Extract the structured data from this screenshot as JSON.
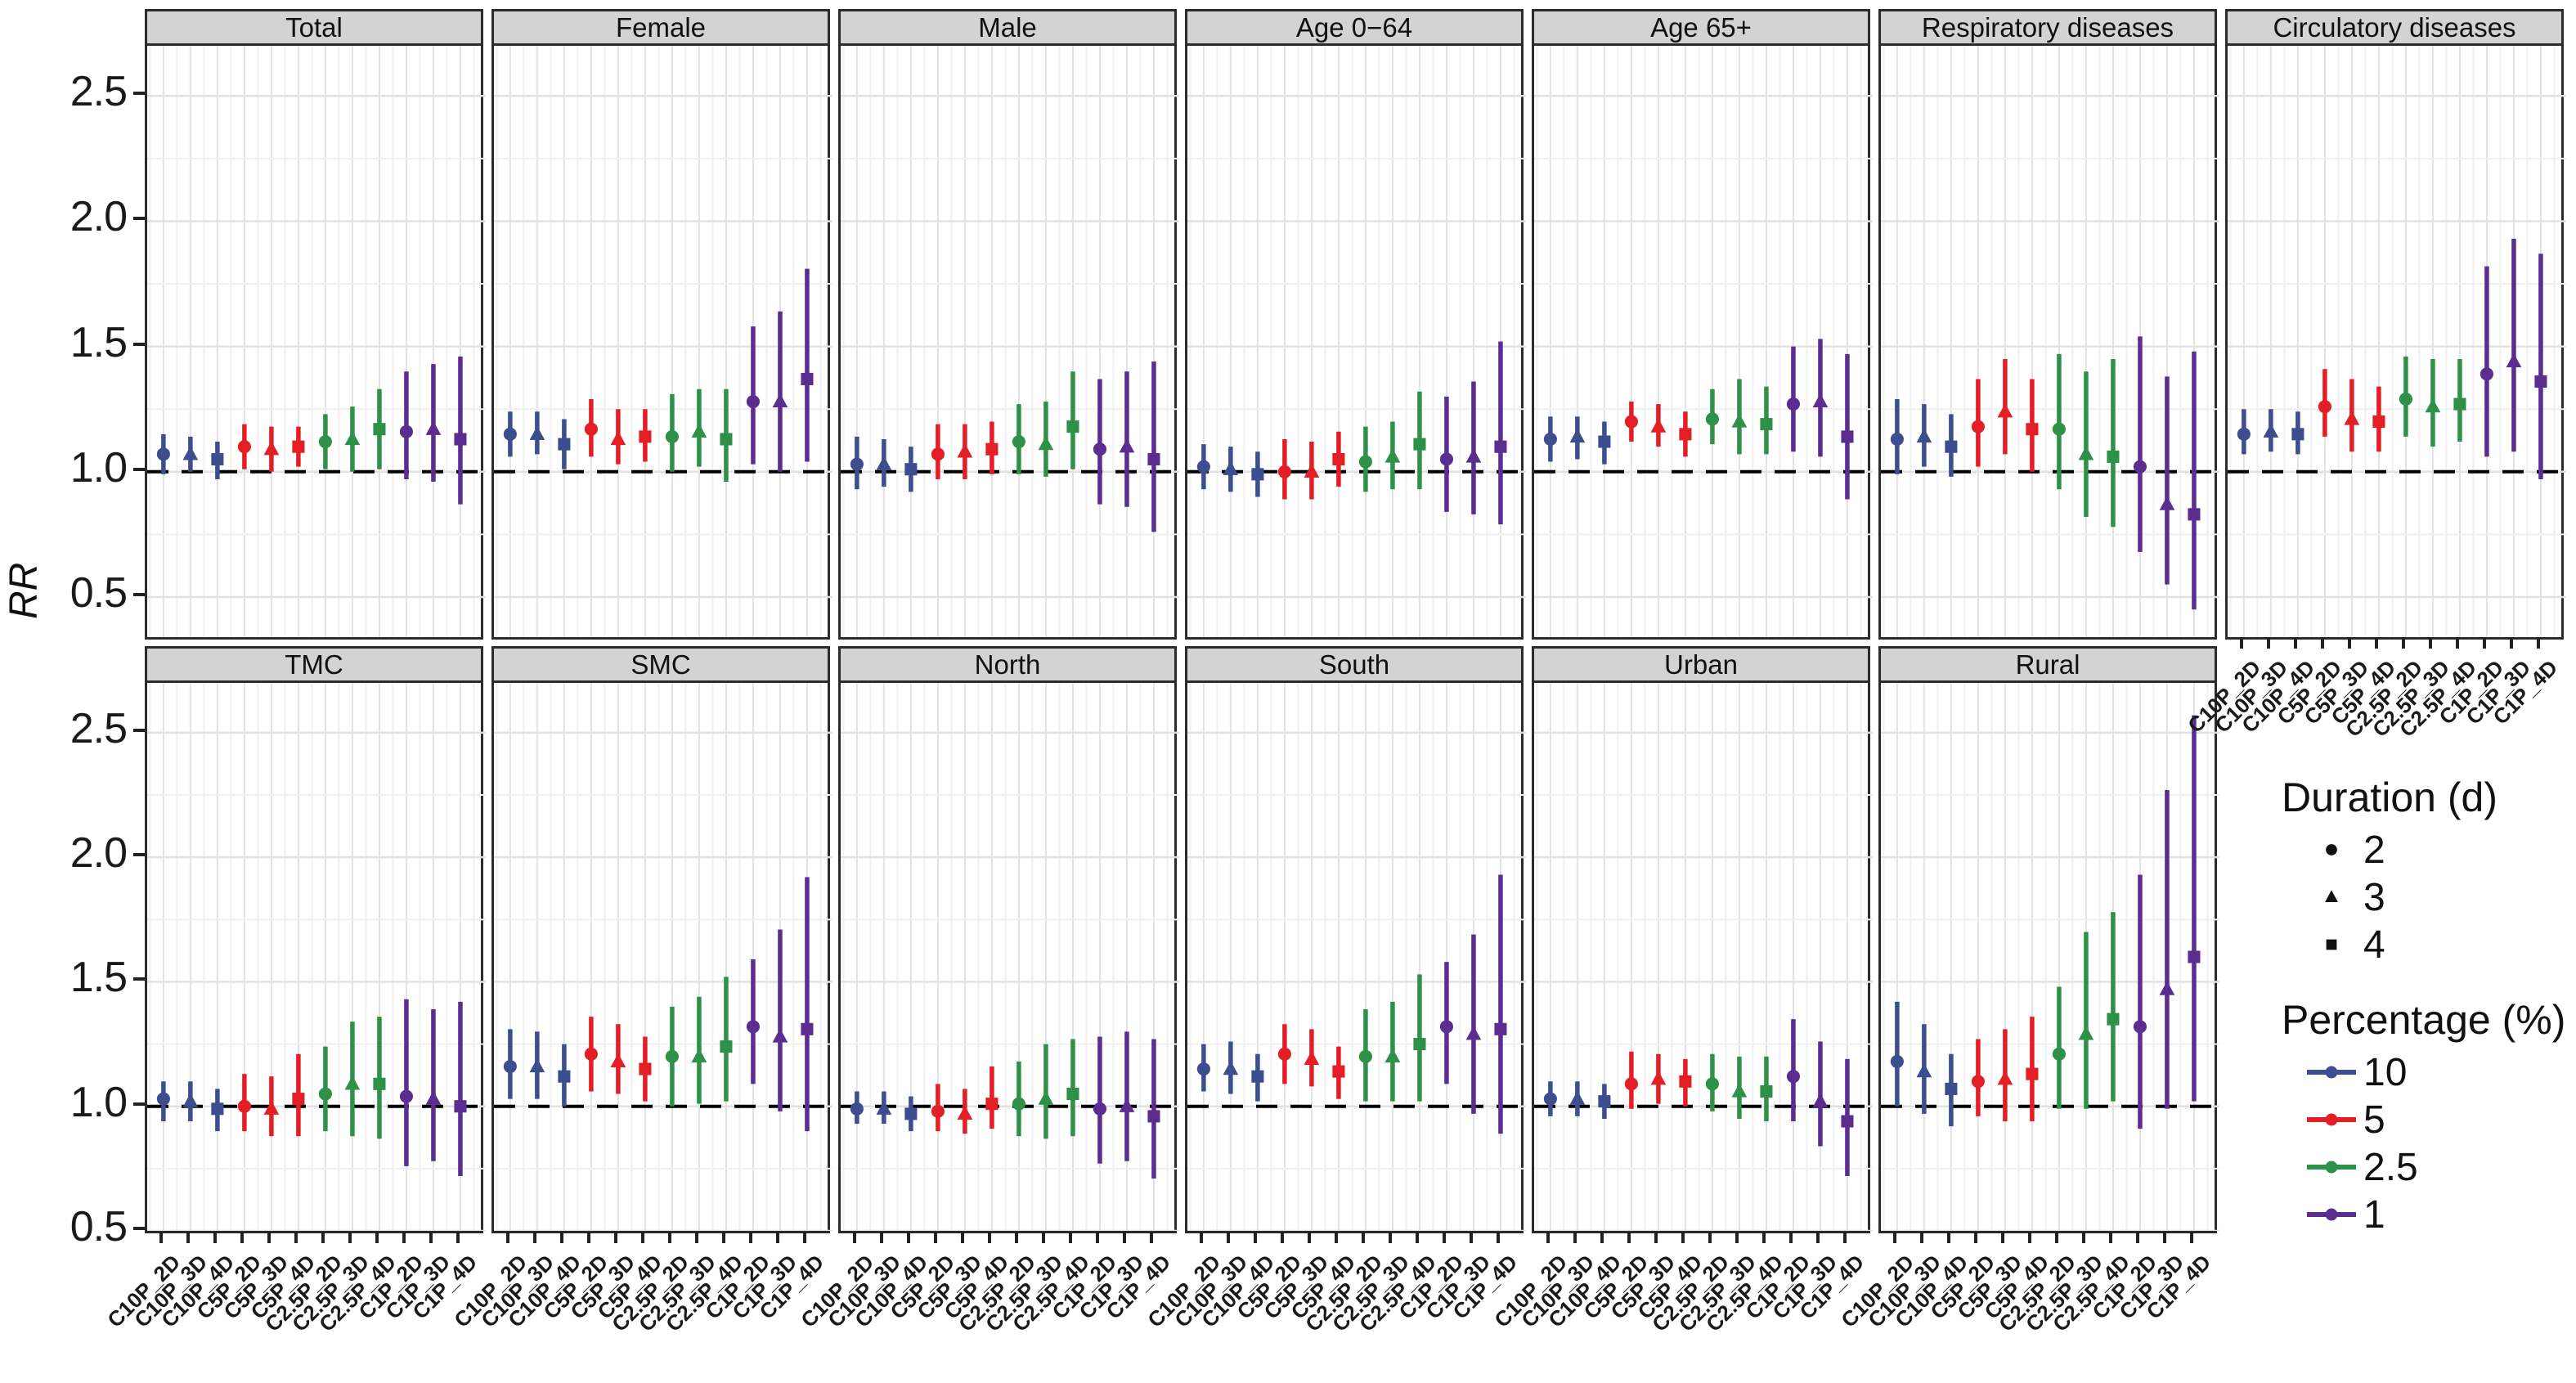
{
  "figure": {
    "ylabel": "RR",
    "reference_line_label": "1.0"
  },
  "legend": {
    "duration": {
      "title": "Duration (d)",
      "items": [
        {
          "label": "2",
          "shape": "circle"
        },
        {
          "label": "3",
          "shape": "triangle"
        },
        {
          "label": "4",
          "shape": "square"
        }
      ]
    },
    "percentage": {
      "title": "Percentage (%)",
      "items": [
        {
          "label": "10",
          "color": "#3C4E8F"
        },
        {
          "label": "5",
          "color": "#E41E25"
        },
        {
          "label": "2.5",
          "color": "#2E9148"
        },
        {
          "label": "1",
          "color": "#5C2D91"
        }
      ]
    }
  },
  "chart_data": {
    "type": "scatter",
    "subtype": "pointrange-forest",
    "title": "",
    "xlabel": "",
    "ylabel": "RR",
    "reference_line": 1.0,
    "y_ticks": [
      0.5,
      1.0,
      1.5,
      2.0,
      2.5
    ],
    "row1_ylim": [
      0.34,
      2.7
    ],
    "row2_ylim": [
      0.5,
      2.7
    ],
    "grid": true,
    "legend_position": "right",
    "categories": [
      "C10P_2D",
      "C10P_3D",
      "C10P_4D",
      "C5P_2D",
      "C5P_3D",
      "C5P_4D",
      "C2.5P_2D",
      "C2.5P_3D",
      "C2.5P_4D",
      "C1P_2D",
      "C1P_3D",
      "C1P_4D"
    ],
    "groups": [
      {
        "percent": "10",
        "color": "#3C4E8F"
      },
      {
        "percent": "5",
        "color": "#E41E25"
      },
      {
        "percent": "2.5",
        "color": "#2E9148"
      },
      {
        "percent": "1",
        "color": "#5C2D91"
      }
    ],
    "durations": [
      "2",
      "3",
      "4"
    ],
    "marker_shapes": [
      "circle",
      "triangle",
      "square"
    ],
    "panels": [
      {
        "name": "Total",
        "row": 1,
        "values": [
          [
            1.07,
            0.99,
            1.15
          ],
          [
            1.07,
            1.0,
            1.14
          ],
          [
            1.05,
            0.97,
            1.12
          ],
          [
            1.1,
            1.01,
            1.19
          ],
          [
            1.09,
            1.0,
            1.18
          ],
          [
            1.1,
            1.02,
            1.18
          ],
          [
            1.12,
            1.01,
            1.23
          ],
          [
            1.13,
            1.0,
            1.26
          ],
          [
            1.17,
            1.01,
            1.33
          ],
          [
            1.16,
            0.97,
            1.4
          ],
          [
            1.17,
            0.96,
            1.43
          ],
          [
            1.13,
            0.87,
            1.46
          ]
        ]
      },
      {
        "name": "Female",
        "row": 1,
        "values": [
          [
            1.15,
            1.06,
            1.24
          ],
          [
            1.15,
            1.07,
            1.24
          ],
          [
            1.11,
            1.01,
            1.21
          ],
          [
            1.17,
            1.06,
            1.29
          ],
          [
            1.13,
            1.03,
            1.25
          ],
          [
            1.14,
            1.04,
            1.25
          ],
          [
            1.14,
            1.0,
            1.31
          ],
          [
            1.16,
            1.02,
            1.33
          ],
          [
            1.13,
            0.96,
            1.33
          ],
          [
            1.28,
            1.03,
            1.58
          ],
          [
            1.28,
            1.0,
            1.64
          ],
          [
            1.37,
            1.04,
            1.81
          ]
        ]
      },
      {
        "name": "Male",
        "row": 1,
        "values": [
          [
            1.03,
            0.93,
            1.14
          ],
          [
            1.03,
            0.94,
            1.13
          ],
          [
            1.01,
            0.92,
            1.1
          ],
          [
            1.07,
            0.97,
            1.19
          ],
          [
            1.08,
            0.97,
            1.19
          ],
          [
            1.09,
            0.99,
            1.2
          ],
          [
            1.12,
            0.99,
            1.27
          ],
          [
            1.11,
            0.98,
            1.28
          ],
          [
            1.18,
            1.01,
            1.4
          ],
          [
            1.09,
            0.87,
            1.37
          ],
          [
            1.1,
            0.86,
            1.4
          ],
          [
            1.05,
            0.76,
            1.44
          ]
        ]
      },
      {
        "name": "Age 0−64",
        "row": 1,
        "values": [
          [
            1.02,
            0.93,
            1.11
          ],
          [
            1.01,
            0.92,
            1.1
          ],
          [
            0.99,
            0.9,
            1.08
          ],
          [
            1.0,
            0.89,
            1.13
          ],
          [
            1.0,
            0.89,
            1.12
          ],
          [
            1.05,
            0.94,
            1.16
          ],
          [
            1.04,
            0.92,
            1.18
          ],
          [
            1.06,
            0.93,
            1.2
          ],
          [
            1.11,
            0.93,
            1.32
          ],
          [
            1.05,
            0.84,
            1.3
          ],
          [
            1.06,
            0.83,
            1.36
          ],
          [
            1.1,
            0.79,
            1.52
          ]
        ]
      },
      {
        "name": "Age 65+",
        "row": 1,
        "values": [
          [
            1.13,
            1.04,
            1.22
          ],
          [
            1.14,
            1.05,
            1.22
          ],
          [
            1.12,
            1.03,
            1.2
          ],
          [
            1.2,
            1.12,
            1.28
          ],
          [
            1.18,
            1.1,
            1.27
          ],
          [
            1.15,
            1.06,
            1.24
          ],
          [
            1.21,
            1.11,
            1.33
          ],
          [
            1.2,
            1.07,
            1.37
          ],
          [
            1.19,
            1.07,
            1.34
          ],
          [
            1.27,
            1.08,
            1.5
          ],
          [
            1.28,
            1.06,
            1.53
          ],
          [
            1.14,
            0.89,
            1.47
          ]
        ]
      },
      {
        "name": "Respiratory diseases",
        "row": 1,
        "values": [
          [
            1.13,
            0.99,
            1.29
          ],
          [
            1.14,
            1.02,
            1.27
          ],
          [
            1.1,
            0.98,
            1.23
          ],
          [
            1.18,
            1.02,
            1.37
          ],
          [
            1.24,
            1.07,
            1.45
          ],
          [
            1.17,
            1.0,
            1.37
          ],
          [
            1.17,
            0.93,
            1.47
          ],
          [
            1.07,
            0.82,
            1.4
          ],
          [
            1.06,
            0.78,
            1.45
          ],
          [
            1.02,
            0.68,
            1.54
          ],
          [
            0.87,
            0.55,
            1.38
          ],
          [
            0.83,
            0.45,
            1.48
          ]
        ]
      },
      {
        "name": "Circulatory diseases",
        "row": 1,
        "values": [
          [
            1.15,
            1.07,
            1.25
          ],
          [
            1.16,
            1.08,
            1.25
          ],
          [
            1.15,
            1.07,
            1.24
          ],
          [
            1.26,
            1.14,
            1.41
          ],
          [
            1.21,
            1.08,
            1.37
          ],
          [
            1.2,
            1.08,
            1.34
          ],
          [
            1.29,
            1.14,
            1.46
          ],
          [
            1.26,
            1.1,
            1.45
          ],
          [
            1.27,
            1.12,
            1.45
          ],
          [
            1.39,
            1.06,
            1.82
          ],
          [
            1.44,
            1.08,
            1.93
          ],
          [
            1.36,
            0.97,
            1.87
          ]
        ]
      },
      {
        "name": "TMC",
        "row": 2,
        "values": [
          [
            1.03,
            0.94,
            1.1
          ],
          [
            1.02,
            0.94,
            1.1
          ],
          [
            0.99,
            0.9,
            1.07
          ],
          [
            1.0,
            0.9,
            1.13
          ],
          [
            0.99,
            0.88,
            1.12
          ],
          [
            1.03,
            0.88,
            1.21
          ],
          [
            1.05,
            0.9,
            1.24
          ],
          [
            1.09,
            0.88,
            1.34
          ],
          [
            1.09,
            0.87,
            1.36
          ],
          [
            1.04,
            0.76,
            1.43
          ],
          [
            1.03,
            0.78,
            1.39
          ],
          [
            1.0,
            0.72,
            1.42
          ]
        ]
      },
      {
        "name": "SMC",
        "row": 2,
        "values": [
          [
            1.16,
            1.03,
            1.31
          ],
          [
            1.16,
            1.03,
            1.3
          ],
          [
            1.12,
            1.0,
            1.25
          ],
          [
            1.21,
            1.06,
            1.36
          ],
          [
            1.18,
            1.05,
            1.33
          ],
          [
            1.15,
            1.02,
            1.28
          ],
          [
            1.2,
            1.0,
            1.4
          ],
          [
            1.2,
            1.01,
            1.44
          ],
          [
            1.24,
            1.02,
            1.52
          ],
          [
            1.32,
            1.09,
            1.59
          ],
          [
            1.28,
            0.98,
            1.71
          ],
          [
            1.31,
            0.9,
            1.92
          ]
        ]
      },
      {
        "name": "North",
        "row": 2,
        "values": [
          [
            0.99,
            0.93,
            1.06
          ],
          [
            0.99,
            0.93,
            1.06
          ],
          [
            0.97,
            0.9,
            1.04
          ],
          [
            0.98,
            0.9,
            1.09
          ],
          [
            0.97,
            0.89,
            1.07
          ],
          [
            1.01,
            0.91,
            1.16
          ],
          [
            1.01,
            0.88,
            1.18
          ],
          [
            1.03,
            0.87,
            1.25
          ],
          [
            1.05,
            0.88,
            1.27
          ],
          [
            0.99,
            0.77,
            1.28
          ],
          [
            1.0,
            0.78,
            1.3
          ],
          [
            0.96,
            0.71,
            1.27
          ]
        ]
      },
      {
        "name": "South",
        "row": 2,
        "values": [
          [
            1.15,
            1.06,
            1.25
          ],
          [
            1.15,
            1.05,
            1.26
          ],
          [
            1.12,
            1.02,
            1.21
          ],
          [
            1.21,
            1.09,
            1.33
          ],
          [
            1.19,
            1.08,
            1.31
          ],
          [
            1.14,
            1.03,
            1.24
          ],
          [
            1.2,
            1.02,
            1.39
          ],
          [
            1.2,
            1.02,
            1.42
          ],
          [
            1.25,
            1.02,
            1.53
          ],
          [
            1.32,
            1.09,
            1.58
          ],
          [
            1.29,
            0.97,
            1.69
          ],
          [
            1.31,
            0.89,
            1.93
          ]
        ]
      },
      {
        "name": "Urban",
        "row": 2,
        "values": [
          [
            1.03,
            0.96,
            1.1
          ],
          [
            1.03,
            0.96,
            1.1
          ],
          [
            1.02,
            0.95,
            1.09
          ],
          [
            1.09,
            0.99,
            1.22
          ],
          [
            1.11,
            1.01,
            1.21
          ],
          [
            1.1,
            1.0,
            1.19
          ],
          [
            1.09,
            0.98,
            1.21
          ],
          [
            1.06,
            0.95,
            1.2
          ],
          [
            1.06,
            0.94,
            1.2
          ],
          [
            1.12,
            0.94,
            1.35
          ],
          [
            1.02,
            0.84,
            1.26
          ],
          [
            0.94,
            0.72,
            1.19
          ]
        ]
      },
      {
        "name": "Rural",
        "row": 2,
        "values": [
          [
            1.18,
            1.0,
            1.42
          ],
          [
            1.14,
            0.97,
            1.33
          ],
          [
            1.07,
            0.92,
            1.21
          ],
          [
            1.1,
            0.96,
            1.27
          ],
          [
            1.11,
            0.94,
            1.31
          ],
          [
            1.13,
            0.94,
            1.36
          ],
          [
            1.21,
            0.99,
            1.48
          ],
          [
            1.29,
            0.99,
            1.7
          ],
          [
            1.35,
            1.02,
            1.78
          ],
          [
            1.32,
            0.91,
            1.93
          ],
          [
            1.47,
            0.99,
            2.27
          ],
          [
            1.6,
            1.02,
            2.57
          ]
        ]
      }
    ]
  }
}
